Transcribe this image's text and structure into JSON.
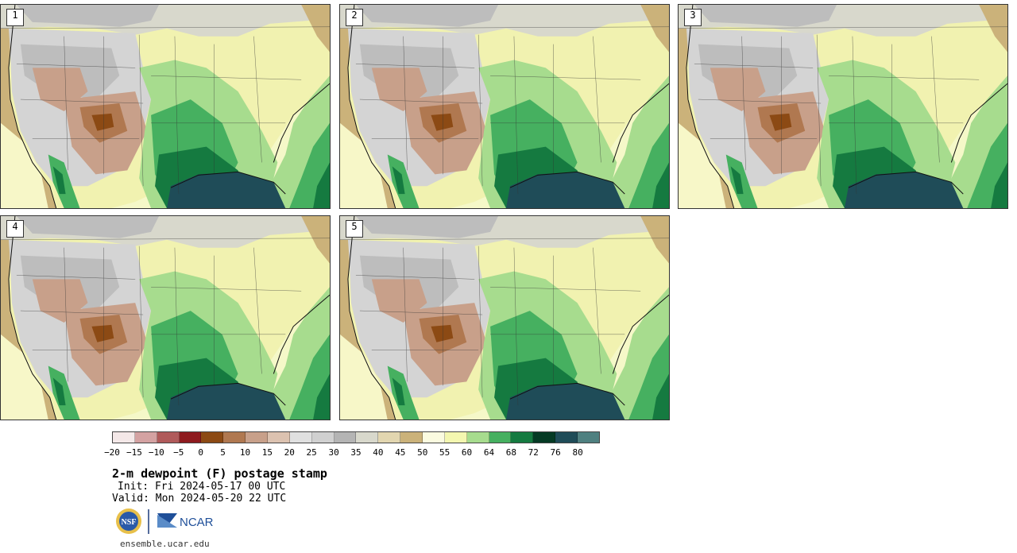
{
  "panels": [
    {
      "label": "1"
    },
    {
      "label": "2"
    },
    {
      "label": "3"
    },
    {
      "label": "4"
    },
    {
      "label": "5"
    }
  ],
  "colorbar": {
    "colors": [
      "#f4e8e8",
      "#d4a2a2",
      "#b05a5a",
      "#8e1a1e",
      "#8c4a14",
      "#b07850",
      "#c8a08a",
      "#dcc2b0",
      "#e0e0e0",
      "#d0d0d0",
      "#b4b4b4",
      "#d8d8cc",
      "#e2d6b0",
      "#cbb27a",
      "#fbfbe0",
      "#f4f7b0",
      "#a7dc8e",
      "#46b060",
      "#157a40",
      "#053a24",
      "#1f4c58",
      "#4f8080"
    ],
    "ticks": [
      "−20",
      "−15",
      "−10",
      "−5",
      "0",
      "5",
      "10",
      "15",
      "20",
      "25",
      "30",
      "35",
      "40",
      "45",
      "50",
      "55",
      "60",
      "64",
      "68",
      "72",
      "76",
      "80"
    ]
  },
  "title": "2-m dewpoint (F) postage stamp",
  "init": "Init: Fri 2024-05-17 00 UTC",
  "valid": "Valid: Mon 2024-05-20 22 UTC",
  "logos": {
    "nsf": "NSF",
    "ncar": "NCAR"
  },
  "url": "ensemble.ucar.edu"
}
